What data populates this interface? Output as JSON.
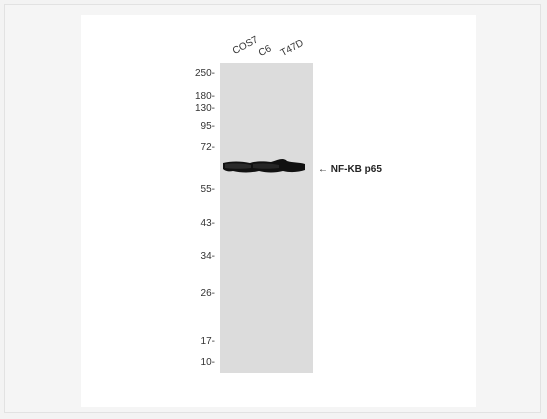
{
  "lanes": [
    "COS7",
    "C6",
    "T47D"
  ],
  "markers": [
    "250-",
    "180-",
    "130-",
    "95-",
    "72-",
    "55-",
    "43-",
    "34-",
    "26-",
    "17-",
    "10-"
  ],
  "target": {
    "arrow": "←",
    "label": "NF-KB p65"
  },
  "colors": {
    "background": "#f5f5f5",
    "membrane": "#dcdcdc",
    "band": "#111111"
  }
}
